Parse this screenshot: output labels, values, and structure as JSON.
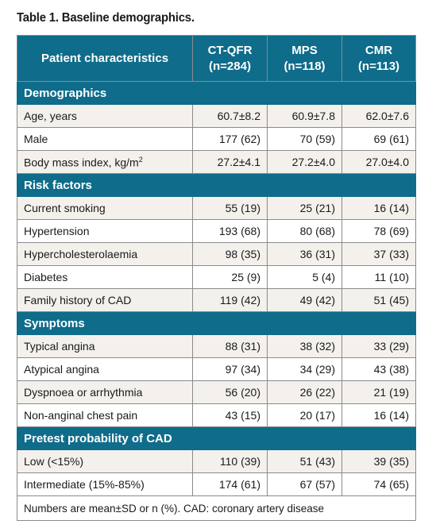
{
  "title": "Table 1. Baseline demographics.",
  "columns": [
    "Patient characteristics",
    "CT-QFR",
    "(n=284)",
    "MPS",
    "(n=118)",
    "CMR",
    "(n=113)"
  ],
  "header": {
    "col1": "Patient characteristics",
    "col2_name": "CT-QFR",
    "col2_n": "(n=284)",
    "col3_name": "MPS",
    "col3_n": "(n=118)",
    "col4_name": "CMR",
    "col4_n": "(n=113)"
  },
  "sections": [
    {
      "title": "Demographics",
      "rows": [
        {
          "label": "Age, years",
          "values": [
            "60.7±8.2",
            "60.9±7.8",
            "62.0±7.6"
          ]
        },
        {
          "label": "Male",
          "values": [
            "177 (62)",
            "70 (59)",
            "69 (61)"
          ]
        },
        {
          "label": "Body mass index, kg/m",
          "values": [
            "27.2±4.1",
            "27.2±4.0",
            "27.0±4.0"
          ]
        }
      ]
    },
    {
      "title": "Risk factors",
      "rows": [
        {
          "label": "Current smoking",
          "values": [
            "55 (19)",
            "25 (21)",
            "16 (14)"
          ]
        },
        {
          "label": "Hypertension",
          "values": [
            "193 (68)",
            "80 (68)",
            "78 (69)"
          ]
        },
        {
          "label": "Hypercholesterolaemia",
          "values": [
            "98 (35)",
            "36 (31)",
            "37 (33)"
          ]
        },
        {
          "label": "Diabetes",
          "values": [
            "25 (9)",
            "5 (4)",
            "11 (10)"
          ]
        },
        {
          "label": "Family history of CAD",
          "values": [
            "119 (42)",
            "49 (42)",
            "51 (45)"
          ]
        }
      ]
    },
    {
      "title": "Symptoms",
      "rows": [
        {
          "label": "Typical angina",
          "values": [
            "88 (31)",
            "38 (32)",
            "33 (29)"
          ]
        },
        {
          "label": "Atypical angina",
          "values": [
            "97 (34)",
            "34 (29)",
            "43 (38)"
          ]
        },
        {
          "label": "Dyspnoea or arrhythmia",
          "values": [
            "56 (20)",
            "26 (22)",
            "21 (19)"
          ]
        },
        {
          "label": "Non-anginal chest pain",
          "values": [
            "43 (15)",
            "20 (17)",
            "16 (14)"
          ]
        }
      ]
    },
    {
      "title": "Pretest probability of CAD",
      "rows": [
        {
          "label": "Low (<15%)",
          "values": [
            "110 (39)",
            "51 (43)",
            "39 (35)"
          ]
        },
        {
          "label": "Intermediate (15%-85%)",
          "values": [
            "174 (61)",
            "67 (57)",
            "74 (65)"
          ]
        }
      ]
    }
  ],
  "bmi_superscript": "2",
  "footnote": "Numbers are mean±SD or n (%). CAD: coronary artery disease",
  "colors": {
    "header_bg": "#0f6c8a",
    "header_text": "#ffffff",
    "row_shade": "#f4f1ec",
    "border": "#8b8b8b"
  }
}
